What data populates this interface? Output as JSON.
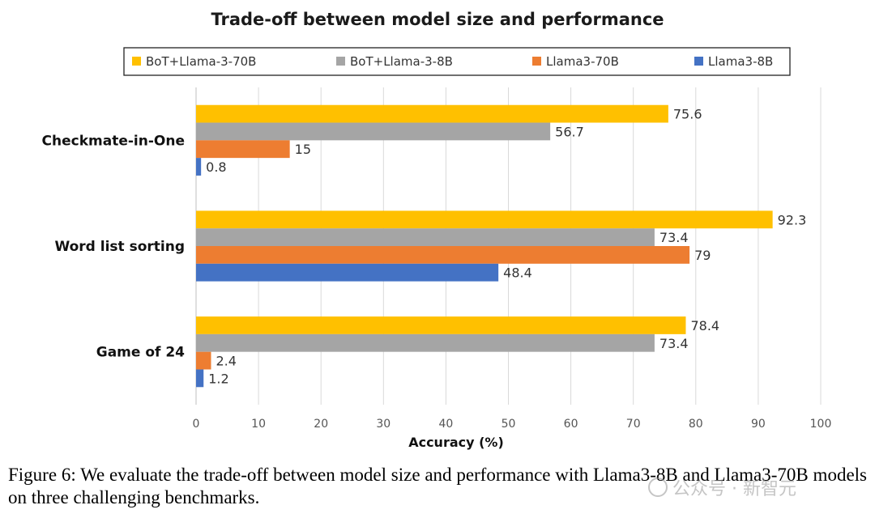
{
  "chart_data": {
    "type": "bar",
    "orientation": "horizontal",
    "title": "Trade-off between model size and performance",
    "xlabel": "Accuracy (%)",
    "ylabel": "",
    "xlim": [
      0,
      100
    ],
    "xticks": [
      0,
      10,
      20,
      30,
      40,
      50,
      60,
      70,
      80,
      90,
      100
    ],
    "grid": true,
    "legend_position": "top",
    "categories": [
      "Checkmate-in-One",
      "Word list sorting",
      "Game of 24"
    ],
    "series": [
      {
        "name": "BoT+Llama-3-70B",
        "color": "#FFC000",
        "values": [
          75.6,
          92.3,
          78.4
        ]
      },
      {
        "name": "BoT+Llama-3-8B",
        "color": "#A5A5A5",
        "values": [
          56.7,
          73.4,
          73.4
        ]
      },
      {
        "name": "Llama3-70B",
        "color": "#ED7D31",
        "values": [
          15,
          79,
          2.4
        ]
      },
      {
        "name": "Llama3-8B",
        "color": "#4472C4",
        "values": [
          0.8,
          48.4,
          1.2
        ]
      }
    ]
  },
  "caption": "Figure 6: We evaluate the trade-off between model size and performance with Llama3-8B and Llama3-70B models on three challenging benchmarks.",
  "watermark": "公众号 · 新智元"
}
